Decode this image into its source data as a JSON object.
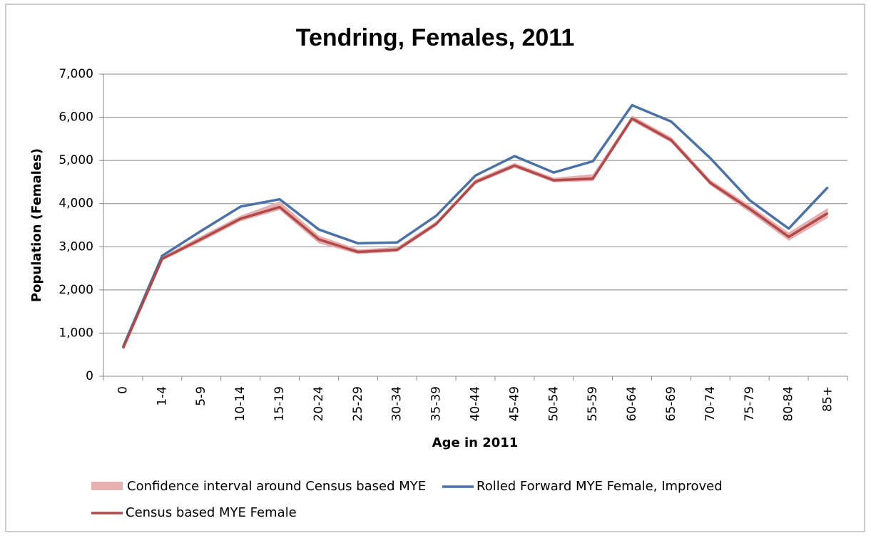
{
  "chart_data": {
    "type": "line",
    "title": "Tendring, Females, 2011",
    "x_label": "Age in 2011",
    "y_label": "Population (Females)",
    "categories": [
      "0",
      "1-4",
      "5-9",
      "10-14",
      "15-19",
      "20-24",
      "25-29",
      "30-34",
      "35-39",
      "40-44",
      "45-49",
      "50-54",
      "55-59",
      "60-64",
      "65-69",
      "70-74",
      "75-79",
      "80-84",
      "85+"
    ],
    "ylim": [
      0,
      7000
    ],
    "yticks": [
      0,
      {
        "value": 1000,
        "label": "1,000"
      },
      {
        "value": 2000,
        "label": "2,000"
      },
      {
        "value": 3000,
        "label": "3,000"
      },
      {
        "value": 4000,
        "label": "4,000"
      },
      {
        "value": 5000,
        "label": "5,000"
      },
      {
        "value": 6000,
        "label": "6,000"
      },
      {
        "value": 7000,
        "label": "7,000"
      }
    ],
    "grid": true,
    "band": {
      "name": "Confidence interval around Census based MYE",
      "color": "#e6b0b0",
      "lower": [
        620,
        2680,
        3120,
        3590,
        3850,
        3080,
        2830,
        2880,
        3480,
        4450,
        4830,
        4490,
        4520,
        5910,
        5410,
        4420,
        3800,
        3140,
        3670
      ],
      "upper": [
        690,
        2770,
        3250,
        3720,
        4050,
        3260,
        2940,
        2990,
        3590,
        4560,
        4940,
        4600,
        4680,
        6040,
        5540,
        4550,
        3960,
        3330,
        3900
      ]
    },
    "series": [
      {
        "name": "Rolled Forward MYE Female, Improved",
        "color": "#4a72a8",
        "values": [
          680,
          2790,
          3370,
          3930,
          4100,
          3400,
          3080,
          3100,
          3720,
          4650,
          5100,
          4720,
          4980,
          6280,
          5900,
          5050,
          4080,
          3420,
          4380
        ]
      },
      {
        "name": "Census based  MYE Female",
        "color": "#b34848",
        "values": [
          650,
          2720,
          3180,
          3650,
          3920,
          3170,
          2880,
          2930,
          3530,
          4500,
          4880,
          4540,
          4580,
          5970,
          5470,
          4480,
          3880,
          3230,
          3780
        ]
      }
    ],
    "legend": "bottom"
  }
}
